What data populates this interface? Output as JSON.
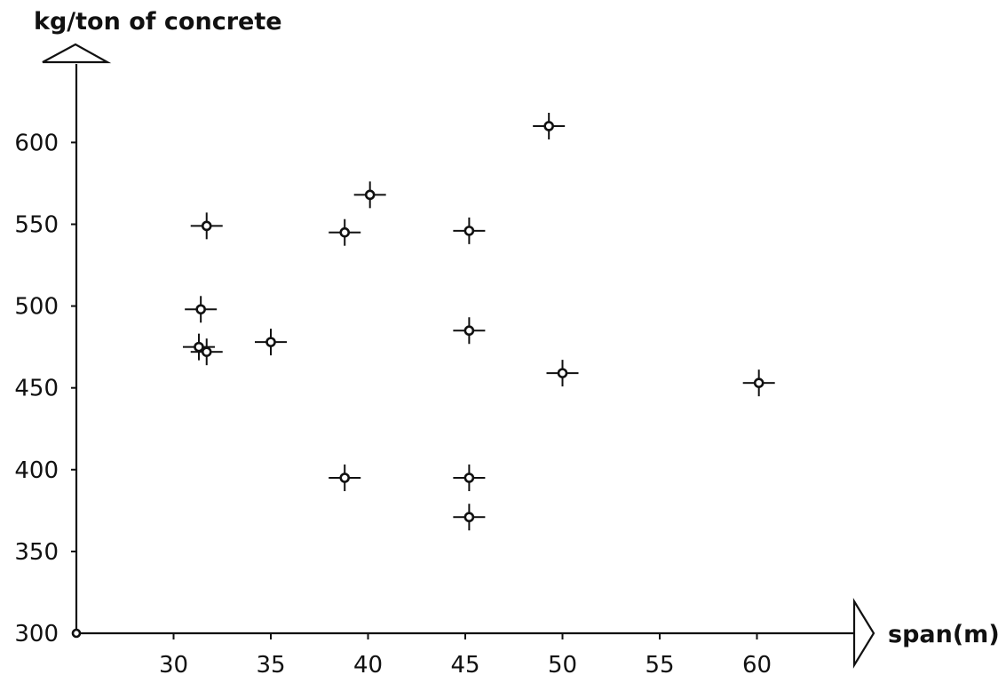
{
  "chart_data": {
    "type": "scatter",
    "ylabel": "kg/ton of concrete",
    "xlabel": "span(m)",
    "xlim": [
      25,
      64
    ],
    "ylim": [
      300,
      650
    ],
    "x_ticks": [
      30,
      35,
      40,
      45,
      50,
      55,
      60
    ],
    "y_ticks": [
      300,
      350,
      400,
      450,
      500,
      550,
      600
    ],
    "grid": false,
    "series": [
      {
        "points": [
          {
            "x": 31.3,
            "y": 475
          },
          {
            "x": 31.4,
            "y": 498
          },
          {
            "x": 31.7,
            "y": 472
          },
          {
            "x": 31.7,
            "y": 549
          },
          {
            "x": 35.0,
            "y": 478
          },
          {
            "x": 38.8,
            "y": 545
          },
          {
            "x": 38.8,
            "y": 395
          },
          {
            "x": 40.1,
            "y": 568
          },
          {
            "x": 45.2,
            "y": 546
          },
          {
            "x": 45.2,
            "y": 485
          },
          {
            "x": 45.2,
            "y": 395
          },
          {
            "x": 45.2,
            "y": 371
          },
          {
            "x": 49.3,
            "y": 610
          },
          {
            "x": 50.0,
            "y": 459
          },
          {
            "x": 60.1,
            "y": 453
          }
        ]
      }
    ]
  }
}
